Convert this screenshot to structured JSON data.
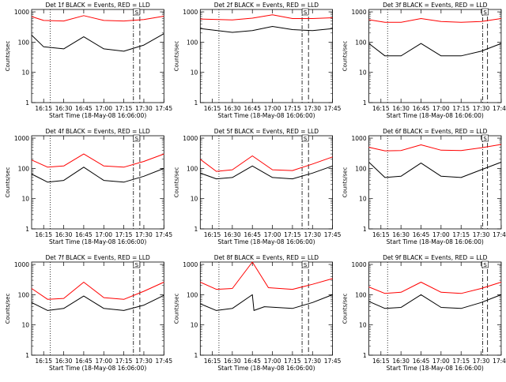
{
  "colors": {
    "events": "#000000",
    "lld": "#ff0000",
    "axis": "#000000"
  },
  "chart_data": [
    {
      "type": "line",
      "title": "Det 1f BLACK = Events, RED = LLD",
      "ylabel": "Counts/sec",
      "xlabel": "Start Time (18-May-08 16:06:00)",
      "xticks": [
        "16:15",
        "16:30",
        "16:45",
        "17:00",
        "17:15",
        "17:30",
        "17:45"
      ],
      "yticks": [
        "1",
        "10",
        "100",
        "1000"
      ],
      "yscale": "log",
      "ylim": [
        1,
        1200
      ],
      "xlim": [
        16.1,
        17.75
      ],
      "dotted_lines": [
        16.333
      ],
      "dashdot_lines": [
        17.37
      ],
      "dashed_lines": [
        17.45
      ],
      "marker_label": "S",
      "series": [
        {
          "name": "Events",
          "color": "#000000",
          "x": [
            16.1,
            16.25,
            16.5,
            16.75,
            17.0,
            17.25,
            17.5,
            17.75
          ],
          "y": [
            170,
            70,
            60,
            150,
            60,
            50,
            80,
            190
          ]
        },
        {
          "name": "LLD",
          "color": "#ff0000",
          "x": [
            16.1,
            16.25,
            16.5,
            16.75,
            17.0,
            17.25,
            17.5,
            17.75
          ],
          "y": [
            700,
            520,
            500,
            750,
            520,
            500,
            560,
            720
          ]
        }
      ]
    },
    {
      "type": "line",
      "title": "Det 2f BLACK = Events, RED = LLD",
      "ylabel": "Counts/sec",
      "xlabel": "Start Time (18-May-08 16:06:00)",
      "xticks": [
        "16:15",
        "16:30",
        "16:45",
        "17:00",
        "17:15",
        "17:30",
        "17:45"
      ],
      "yticks": [
        "1",
        "10",
        "100",
        "1000"
      ],
      "yscale": "log",
      "ylim": [
        1,
        1200
      ],
      "xlim": [
        16.1,
        17.75
      ],
      "dotted_lines": [
        16.333
      ],
      "dashdot_lines": [
        17.37
      ],
      "dashed_lines": [
        17.45
      ],
      "marker_label": "S",
      "series": [
        {
          "name": "Events",
          "color": "#000000",
          "x": [
            16.1,
            16.5,
            16.75,
            17.0,
            17.25,
            17.5,
            17.75
          ],
          "y": [
            280,
            210,
            240,
            330,
            260,
            240,
            280
          ]
        },
        {
          "name": "LLD",
          "color": "#ff0000",
          "x": [
            16.1,
            16.5,
            16.75,
            17.0,
            17.25,
            17.5,
            17.75
          ],
          "y": [
            580,
            540,
            620,
            800,
            600,
            600,
            640
          ]
        }
      ]
    },
    {
      "type": "line",
      "title": "Det 3f BLACK = Events, RED = LLD",
      "ylabel": "Counts/sec",
      "xlabel": "Start Time (18-May-08 16:06:00)",
      "xticks": [
        "16:15",
        "16:30",
        "16:45",
        "17:00",
        "17:15",
        "17:30",
        "17:45"
      ],
      "yticks": [
        "1",
        "10",
        "100",
        "1000"
      ],
      "yscale": "log",
      "ylim": [
        1,
        1200
      ],
      "xlim": [
        16.1,
        17.75
      ],
      "dotted_lines": [
        16.333
      ],
      "dashdot_lines": [
        17.52
      ],
      "dashed_lines": [
        17.58
      ],
      "marker_label": "S",
      "series": [
        {
          "name": "Events",
          "color": "#000000",
          "x": [
            16.1,
            16.3,
            16.5,
            16.75,
            17.0,
            17.25,
            17.5,
            17.75
          ],
          "y": [
            90,
            35,
            35,
            90,
            35,
            35,
            50,
            90
          ]
        },
        {
          "name": "LLD",
          "color": "#ff0000",
          "x": [
            16.1,
            16.3,
            16.5,
            16.75,
            17.0,
            17.25,
            17.5,
            17.75
          ],
          "y": [
            550,
            450,
            450,
            600,
            480,
            450,
            480,
            600
          ]
        }
      ]
    },
    {
      "type": "line",
      "title": "Det 4f BLACK = Events, RED = LLD",
      "ylabel": "Counts/sec",
      "xlabel": "Start Time (18-May-08 16:06:00)",
      "xticks": [
        "16:15",
        "16:30",
        "16:45",
        "17:00",
        "17:15",
        "17:30",
        "17:45"
      ],
      "yticks": [
        "1",
        "10",
        "100",
        "1000"
      ],
      "yscale": "log",
      "ylim": [
        1,
        1200
      ],
      "xlim": [
        16.1,
        17.75
      ],
      "dotted_lines": [
        16.333
      ],
      "dashdot_lines": [
        17.37
      ],
      "dashed_lines": [
        17.45
      ],
      "marker_label": "S",
      "series": [
        {
          "name": "Events",
          "color": "#000000",
          "x": [
            16.1,
            16.3,
            16.5,
            16.75,
            17.0,
            17.25,
            17.5,
            17.75
          ],
          "y": [
            65,
            35,
            40,
            110,
            40,
            35,
            55,
            100
          ]
        },
        {
          "name": "LLD",
          "color": "#ff0000",
          "x": [
            16.1,
            16.3,
            16.5,
            16.75,
            17.0,
            17.25,
            17.5,
            17.75
          ],
          "y": [
            190,
            110,
            120,
            300,
            120,
            110,
            170,
            300
          ]
        }
      ]
    },
    {
      "type": "line",
      "title": "Det 5f BLACK = Events, RED = LLD",
      "ylabel": "Counts/sec",
      "xlabel": "Start Time (18-May-08 16:06:00)",
      "xticks": [
        "16:15",
        "16:30",
        "16:45",
        "17:00",
        "17:15",
        "17:30",
        "17:45"
      ],
      "yticks": [
        "1",
        "10",
        "100",
        "1000"
      ],
      "yscale": "log",
      "ylim": [
        1,
        1200
      ],
      "xlim": [
        16.1,
        17.75
      ],
      "dotted_lines": [
        16.333
      ],
      "dashdot_lines": [
        17.37
      ],
      "dashed_lines": [
        17.45
      ],
      "marker_label": "S",
      "series": [
        {
          "name": "Events",
          "color": "#000000",
          "x": [
            16.1,
            16.3,
            16.5,
            16.75,
            17.0,
            17.25,
            17.5,
            17.75
          ],
          "y": [
            70,
            45,
            50,
            120,
            50,
            45,
            70,
            120
          ]
        },
        {
          "name": "LLD",
          "color": "#ff0000",
          "x": [
            16.1,
            16.3,
            16.5,
            16.75,
            17.0,
            17.25,
            17.5,
            17.75
          ],
          "y": [
            200,
            80,
            90,
            260,
            90,
            85,
            140,
            240
          ]
        }
      ]
    },
    {
      "type": "line",
      "title": "Det 6f BLACK = Events, RED = LLD",
      "ylabel": "Counts/sec",
      "xlabel": "Start Time (18-May-08 16:06:00)",
      "xticks": [
        "16:15",
        "16:30",
        "16:45",
        "17:00",
        "17:15",
        "17:30",
        "17:45"
      ],
      "yticks": [
        "1",
        "10",
        "100",
        "1000"
      ],
      "yscale": "log",
      "ylim": [
        1,
        1200
      ],
      "xlim": [
        16.1,
        17.75
      ],
      "dotted_lines": [
        16.333
      ],
      "dashdot_lines": [
        17.52
      ],
      "dashed_lines": [
        17.58
      ],
      "marker_label": "S",
      "series": [
        {
          "name": "Events",
          "color": "#000000",
          "x": [
            16.1,
            16.3,
            16.5,
            16.75,
            17.0,
            17.25,
            17.5,
            17.75
          ],
          "y": [
            160,
            50,
            55,
            150,
            55,
            50,
            90,
            160
          ]
        },
        {
          "name": "LLD",
          "color": "#ff0000",
          "x": [
            16.1,
            16.3,
            16.5,
            16.75,
            17.0,
            17.25,
            17.5,
            17.75
          ],
          "y": [
            500,
            380,
            390,
            600,
            400,
            390,
            480,
            620
          ]
        }
      ]
    },
    {
      "type": "line",
      "title": "Det 7f BLACK = Events, RED = LLD",
      "ylabel": "Counts/sec",
      "xlabel": "Start Time (18-May-08 16:06:00)",
      "xticks": [
        "16:15",
        "16:30",
        "16:45",
        "17:00",
        "17:15",
        "17:30",
        "17:45"
      ],
      "yticks": [
        "1",
        "10",
        "100",
        "1000"
      ],
      "yscale": "log",
      "ylim": [
        1,
        1200
      ],
      "xlim": [
        16.1,
        17.75
      ],
      "dotted_lines": [
        16.333
      ],
      "dashdot_lines": [
        17.37
      ],
      "dashed_lines": [
        17.45
      ],
      "marker_label": "S",
      "series": [
        {
          "name": "Events",
          "color": "#000000",
          "x": [
            16.1,
            16.3,
            16.5,
            16.75,
            17.0,
            17.25,
            17.5,
            17.75
          ],
          "y": [
            55,
            30,
            35,
            90,
            35,
            30,
            45,
            95
          ]
        },
        {
          "name": "LLD",
          "color": "#ff0000",
          "x": [
            16.1,
            16.3,
            16.5,
            16.75,
            17.0,
            17.25,
            17.5,
            17.75
          ],
          "y": [
            160,
            70,
            75,
            260,
            80,
            70,
            130,
            260
          ]
        }
      ]
    },
    {
      "type": "line",
      "title": "Det 8f BLACK = Events, RED = LLD",
      "ylabel": "Counts/sec",
      "xlabel": "Start Time (18-May-08 16:06:00)",
      "xticks": [
        "16:15",
        "16:30",
        "16:45",
        "17:00",
        "17:15",
        "17:30",
        "17:45"
      ],
      "yticks": [
        "1",
        "10",
        "100",
        "1000"
      ],
      "yscale": "log",
      "ylim": [
        1,
        1200
      ],
      "xlim": [
        16.1,
        17.75
      ],
      "dotted_lines": [
        16.333
      ],
      "dashdot_lines": [
        17.37
      ],
      "dashed_lines": [
        17.45
      ],
      "marker_label": "S",
      "series": [
        {
          "name": "Events",
          "color": "#000000",
          "x": [
            16.1,
            16.3,
            16.5,
            16.75,
            16.77,
            16.9,
            17.25,
            17.5,
            17.75
          ],
          "y": [
            50,
            30,
            35,
            100,
            30,
            40,
            35,
            55,
            100
          ]
        },
        {
          "name": "LLD",
          "color": "#ff0000",
          "x": [
            16.1,
            16.3,
            16.5,
            16.75,
            16.95,
            17.25,
            17.5,
            17.75
          ],
          "y": [
            260,
            150,
            160,
            1200,
            170,
            150,
            220,
            340
          ]
        }
      ]
    },
    {
      "type": "line",
      "title": "Det 9f BLACK = Events, RED = LLD",
      "ylabel": "Counts/sec",
      "xlabel": "Start Time (18-May-08 16:06:00)",
      "xticks": [
        "16:15",
        "16:30",
        "16:45",
        "17:00",
        "17:15",
        "17:30",
        "17:45"
      ],
      "yticks": [
        "1",
        "10",
        "100",
        "1000"
      ],
      "yscale": "log",
      "ylim": [
        1,
        1200
      ],
      "xlim": [
        16.1,
        17.75
      ],
      "dotted_lines": [
        16.333
      ],
      "dashdot_lines": [
        17.52
      ],
      "dashed_lines": [
        17.58
      ],
      "marker_label": "S",
      "series": [
        {
          "name": "Events",
          "color": "#000000",
          "x": [
            16.1,
            16.3,
            16.5,
            16.75,
            17.0,
            17.25,
            17.5,
            17.75
          ],
          "y": [
            60,
            35,
            38,
            100,
            38,
            35,
            55,
            100
          ]
        },
        {
          "name": "LLD",
          "color": "#ff0000",
          "x": [
            16.1,
            16.3,
            16.5,
            16.75,
            17.0,
            17.25,
            17.5,
            17.75
          ],
          "y": [
            180,
            110,
            120,
            260,
            120,
            110,
            160,
            260
          ]
        }
      ]
    }
  ]
}
